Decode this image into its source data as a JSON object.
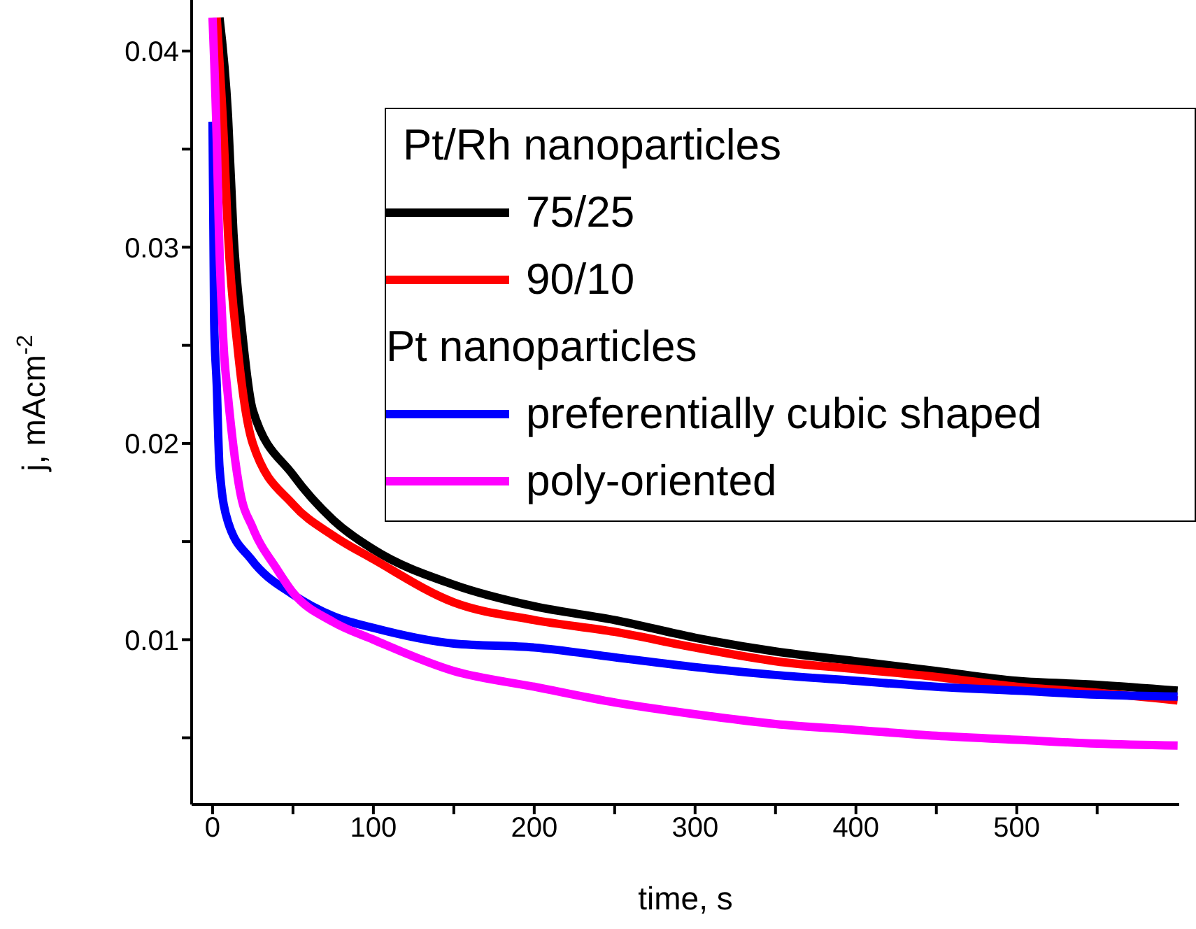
{
  "chart_data": {
    "type": "line",
    "xlabel": "time, s",
    "ylabel": "j, mAcm$^{-2}$",
    "legend_title": "Pt/Rh nanoparticles",
    "annotations": [
      "Pt nanoparticles"
    ],
    "legend": "top right",
    "marker": "none",
    "line_style": "solid",
    "xlim": [
      -13,
      601
    ],
    "xticks": [
      0,
      {
        "value": 50,
        "label": null
      },
      100,
      {
        "value": 150,
        "label": null
      },
      200,
      {
        "value": 250,
        "label": null
      },
      300,
      {
        "value": 350,
        "label": null
      },
      400,
      {
        "value": 450,
        "label": null
      },
      500,
      {
        "value": 550,
        "label": null
      }
    ],
    "ylim": [
      0.0016,
      0.0426
    ],
    "yticks": [
      {
        "value": 0.005,
        "label": null
      },
      0.01,
      {
        "value": 0.015,
        "label": null
      },
      0.02,
      {
        "value": 0.025,
        "label": null
      },
      0.03,
      {
        "value": 0.035,
        "label": null
      },
      0.04
    ],
    "series": [
      {
        "name": "75/25",
        "color": "#000000",
        "x": [
          4.3,
          9.6,
          13,
          18,
          25,
          50,
          75,
          100,
          150,
          200,
          250,
          300,
          350,
          400,
          450,
          500,
          550,
          600
        ],
        "values": [
          0.0417,
          0.0367,
          0.0307,
          0.026,
          0.0217,
          0.0184,
          0.0161,
          0.0146,
          0.0128,
          0.0117,
          0.011,
          0.0101,
          0.0094,
          0.0089,
          0.0084,
          0.0079,
          0.0077,
          0.0074
        ]
      },
      {
        "name": "90/10",
        "color": "#ff0000",
        "x": [
          2.6,
          7,
          9.6,
          15.7,
          25,
          50,
          75,
          100,
          150,
          200,
          250,
          300,
          350,
          400,
          450,
          500,
          550,
          600
        ],
        "values": [
          0.0417,
          0.0355,
          0.0307,
          0.0248,
          0.02,
          0.0169,
          0.0153,
          0.0141,
          0.0119,
          0.011,
          0.0104,
          0.0096,
          0.0089,
          0.0085,
          0.0081,
          0.0076,
          0.0073,
          0.0069
        ]
      },
      {
        "name": "preferentially cubic shaped",
        "color": "#0000ff",
        "x": [
          0,
          1,
          2.6,
          4.3,
          9.6,
          24,
          50,
          75,
          100,
          150,
          200,
          250,
          300,
          350,
          400,
          450,
          500,
          550,
          600
        ],
        "values": [
          0.0364,
          0.0262,
          0.023,
          0.0188,
          0.016,
          0.0141,
          0.0123,
          0.0112,
          0.0106,
          0.0098,
          0.0096,
          0.0091,
          0.0086,
          0.0082,
          0.0079,
          0.0076,
          0.0074,
          0.0072,
          0.0071
        ]
      },
      {
        "name": "poly-oriented",
        "color": "#ff00ff",
        "x": [
          0,
          2.6,
          4,
          7,
          9.6,
          17,
          25,
          40,
          50,
          75,
          100,
          150,
          200,
          250,
          300,
          350,
          400,
          450,
          500,
          550,
          600
        ],
        "values": [
          0.0417,
          0.0355,
          0.0307,
          0.0248,
          0.0224,
          0.0176,
          0.0157,
          0.0136,
          0.0124,
          0.0109,
          0.01,
          0.0084,
          0.0076,
          0.0068,
          0.0062,
          0.0057,
          0.0054,
          0.0051,
          0.0049,
          0.0047,
          0.0046
        ]
      }
    ]
  }
}
